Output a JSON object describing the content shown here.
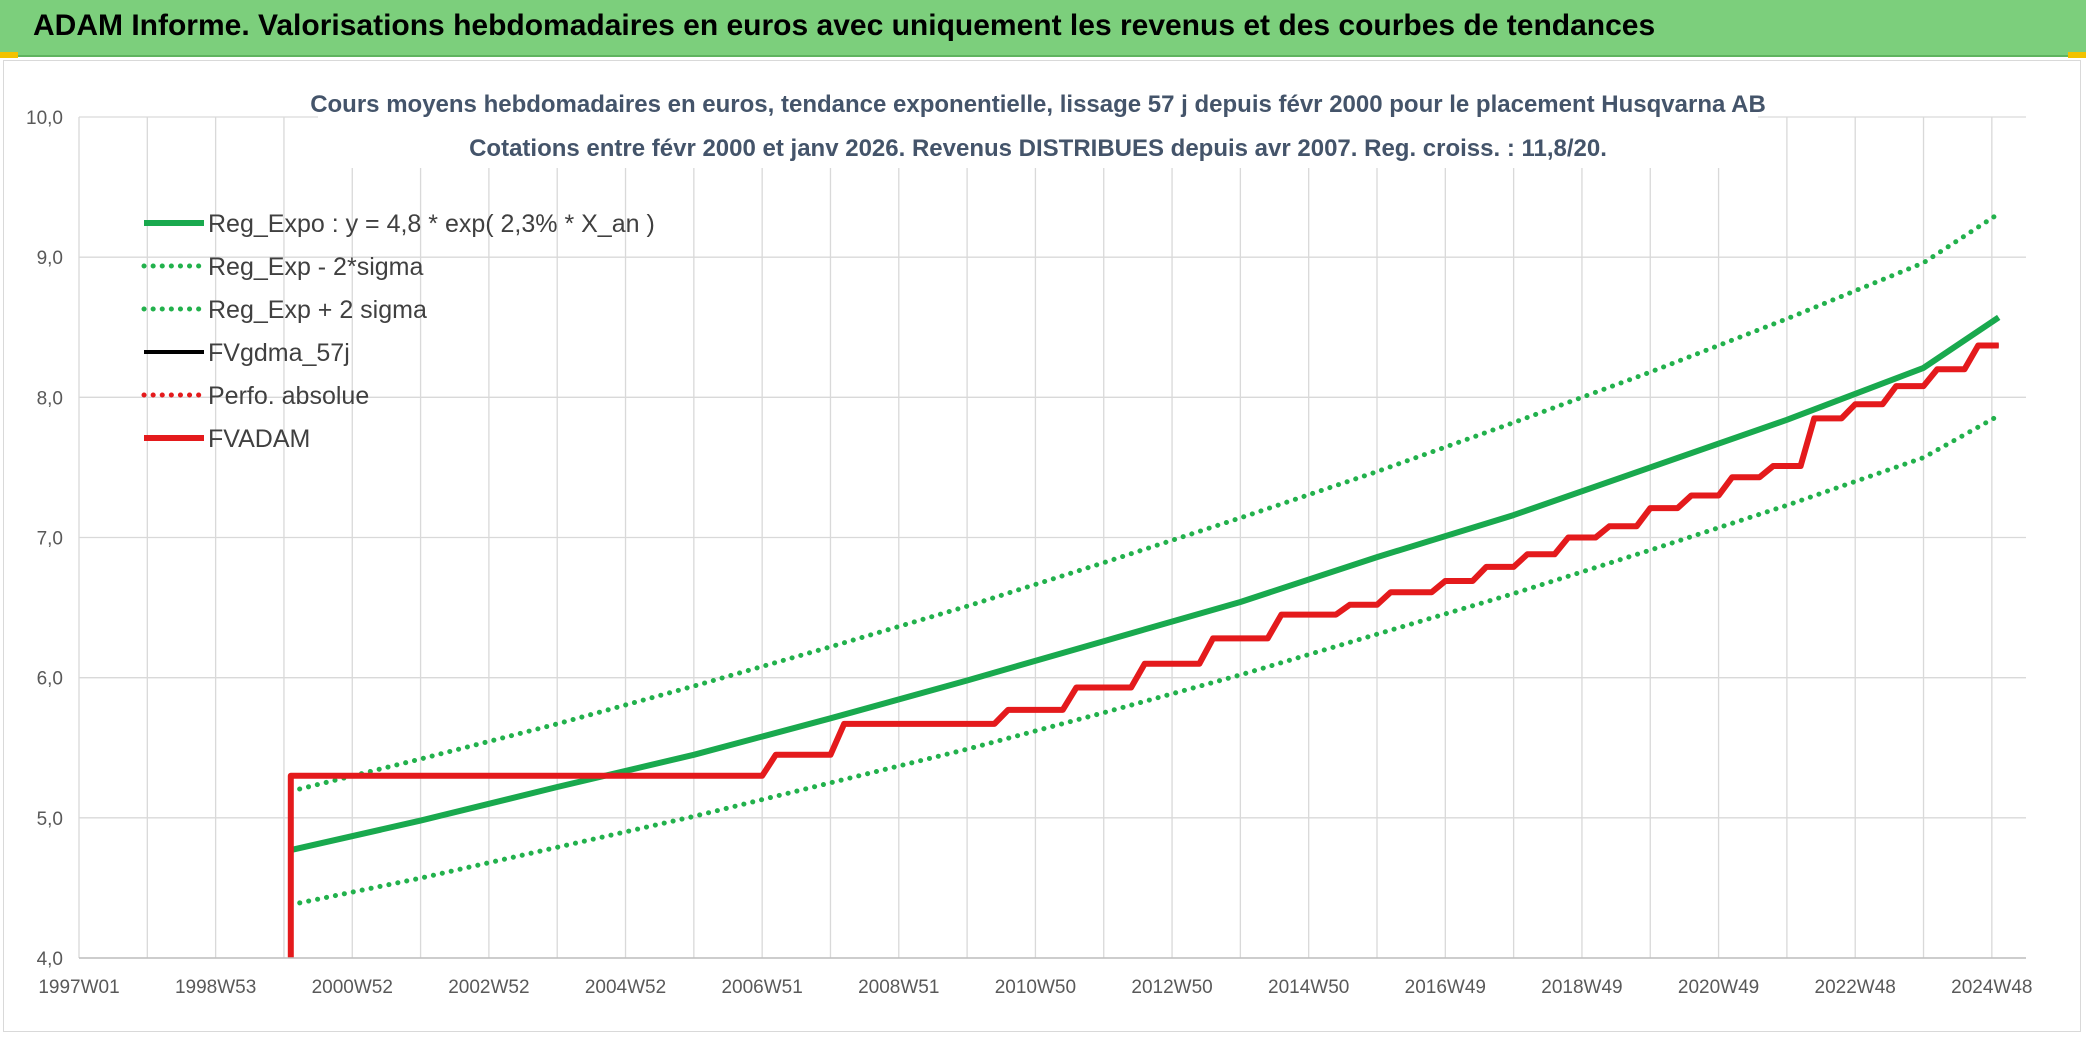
{
  "banner": {
    "title": "ADAM Informe. Valorisations hebdomadaires en euros avec uniquement les revenus et des courbes de tendances"
  },
  "colors": {
    "banner_bg": "#7ccf7c",
    "trend_green": "#19a94e",
    "band_green": "#22b14c",
    "fvgdma_black": "#000000",
    "fvadam_red": "#e41a1c",
    "perfo_red": "#e41a1c",
    "grid": "#d9d9d9",
    "title_text": "#44546a",
    "tick_text": "#595959"
  },
  "chart_data": {
    "type": "line",
    "title": "Cours moyens hebdomadaires en euros, tendance exponentielle, lissage 57 j depuis févr 2000 pour le placement Husqvarna AB",
    "subtitle": "Cotations entre févr 2000 et janv 2026. Revenus DISTRIBUES depuis avr 2007. Reg. croiss. : 11,8/20.",
    "xlabel": "",
    "ylabel": "",
    "ylim": [
      4.0,
      10.0
    ],
    "xlim": [
      1997.0,
      2025.5
    ],
    "y_ticks": [
      "4,0",
      "5,0",
      "6,0",
      "7,0",
      "8,0",
      "9,0",
      "10,0"
    ],
    "y_tick_values": [
      4.0,
      5.0,
      6.0,
      7.0,
      8.0,
      9.0,
      10.0
    ],
    "x_ticks": [
      "1997W01",
      "1998W53",
      "2000W52",
      "2002W52",
      "2004W52",
      "2006W51",
      "2008W51",
      "2010W50",
      "2012W50",
      "2014W50",
      "2016W49",
      "2018W49",
      "2020W49",
      "2022W48",
      "2024W48"
    ],
    "x_tick_values": [
      1997.0,
      1999.0,
      2001.0,
      2003.0,
      2005.0,
      2007.0,
      2009.0,
      2011.0,
      2013.0,
      2015.0,
      2017.0,
      2019.0,
      2021.0,
      2023.0,
      2025.0
    ],
    "grid": true,
    "legend_position": "top-left",
    "series": [
      {
        "name": "Reg_Expo : y = 4,8 * exp( 2,3% *  X_an )",
        "style": "solid-thick",
        "color": "#19a94e",
        "x": [
          2000.1,
          2002,
          2004,
          2006,
          2008,
          2010,
          2012,
          2014,
          2016,
          2018,
          2020,
          2022,
          2024,
          2025.1
        ],
        "y": [
          4.77,
          4.98,
          5.22,
          5.45,
          5.71,
          5.98,
          6.26,
          6.54,
          6.86,
          7.16,
          7.5,
          7.84,
          8.21,
          8.57
        ]
      },
      {
        "name": "Reg_Exp - 2*sigma",
        "style": "dotted",
        "color": "#22b14c",
        "x": [
          2000.1,
          2002,
          2004,
          2006,
          2008,
          2010,
          2012,
          2014,
          2016,
          2018,
          2020,
          2022,
          2024,
          2025.1
        ],
        "y": [
          4.38,
          4.57,
          4.79,
          5.01,
          5.25,
          5.49,
          5.75,
          6.02,
          6.31,
          6.6,
          6.91,
          7.23,
          7.57,
          7.87
        ]
      },
      {
        "name": "Reg_Exp + 2 sigma",
        "style": "dotted",
        "color": "#22b14c",
        "x": [
          2000.1,
          2002,
          2004,
          2006,
          2008,
          2010,
          2012,
          2014,
          2016,
          2018,
          2020,
          2022,
          2024,
          2025.1
        ],
        "y": [
          5.19,
          5.42,
          5.67,
          5.94,
          6.22,
          6.51,
          6.82,
          7.14,
          7.47,
          7.82,
          8.18,
          8.56,
          8.96,
          9.31
        ]
      },
      {
        "name": "FVgdma_57j",
        "style": "solid",
        "color": "#000000",
        "x": [
          2000.1,
          2007.0,
          2007.2,
          2008.0,
          2008.2,
          2010.4,
          2010.6,
          2011.4,
          2011.6,
          2012.4,
          2012.6,
          2013.4,
          2013.6,
          2014.4,
          2014.6,
          2015.4,
          2015.6,
          2016.0,
          2016.2,
          2016.8,
          2017.0,
          2017.4,
          2017.6,
          2018.0,
          2018.2,
          2018.6,
          2018.8,
          2019.2,
          2019.4,
          2019.8,
          2020.0,
          2020.4,
          2020.6,
          2021.0,
          2021.2,
          2021.6,
          2021.8,
          2022.2,
          2022.4,
          2022.8,
          2023.0,
          2023.4,
          2023.6,
          2024.0,
          2024.2,
          2024.6,
          2024.8,
          2025.1
        ],
        "y": [
          5.3,
          5.3,
          5.45,
          5.45,
          5.67,
          5.67,
          5.77,
          5.77,
          5.93,
          5.93,
          6.1,
          6.1,
          6.28,
          6.28,
          6.45,
          6.45,
          6.52,
          6.52,
          6.61,
          6.61,
          6.69,
          6.69,
          6.79,
          6.79,
          6.88,
          6.88,
          7.0,
          7.0,
          7.08,
          7.08,
          7.21,
          7.21,
          7.3,
          7.3,
          7.43,
          7.43,
          7.51,
          7.51,
          7.85,
          7.85,
          7.95,
          7.95,
          8.08,
          8.08,
          8.2,
          8.2,
          8.37,
          8.37
        ]
      },
      {
        "name": "Perfo. absolue",
        "style": "dotted",
        "color": "#e41a1c",
        "x": [
          2000.1,
          2007.0,
          2007.2,
          2008.0,
          2008.2,
          2010.4,
          2010.6,
          2011.4,
          2011.6,
          2012.4,
          2012.6,
          2013.4,
          2013.6,
          2014.4,
          2014.6,
          2015.4,
          2015.6,
          2016.0,
          2016.2,
          2016.8,
          2017.0,
          2017.4,
          2017.6,
          2018.0,
          2018.2,
          2018.6,
          2018.8,
          2019.2,
          2019.4,
          2019.8,
          2020.0,
          2020.4,
          2020.6,
          2021.0,
          2021.2,
          2021.6,
          2021.8,
          2022.2,
          2022.4,
          2022.8,
          2023.0,
          2023.4,
          2023.6,
          2024.0,
          2024.2,
          2024.6,
          2024.8,
          2025.1
        ],
        "y": [
          5.3,
          5.3,
          5.45,
          5.45,
          5.67,
          5.67,
          5.77,
          5.77,
          5.93,
          5.93,
          6.1,
          6.1,
          6.28,
          6.28,
          6.45,
          6.45,
          6.52,
          6.52,
          6.61,
          6.61,
          6.69,
          6.69,
          6.79,
          6.79,
          6.88,
          6.88,
          7.0,
          7.0,
          7.08,
          7.08,
          7.21,
          7.21,
          7.3,
          7.3,
          7.43,
          7.43,
          7.51,
          7.51,
          7.85,
          7.85,
          7.95,
          7.95,
          8.08,
          8.08,
          8.2,
          8.2,
          8.37,
          8.37
        ]
      },
      {
        "name": "FVADAM",
        "style": "solid-thick",
        "color": "#e41a1c",
        "x": [
          2000.1,
          2000.1,
          2007.0,
          2007.2,
          2008.0,
          2008.2,
          2010.4,
          2010.6,
          2011.4,
          2011.6,
          2012.4,
          2012.6,
          2013.4,
          2013.6,
          2014.4,
          2014.6,
          2015.4,
          2015.6,
          2016.0,
          2016.2,
          2016.8,
          2017.0,
          2017.4,
          2017.6,
          2018.0,
          2018.2,
          2018.6,
          2018.8,
          2019.2,
          2019.4,
          2019.8,
          2020.0,
          2020.4,
          2020.6,
          2021.0,
          2021.2,
          2021.6,
          2021.8,
          2022.2,
          2022.4,
          2022.8,
          2023.0,
          2023.4,
          2023.6,
          2024.0,
          2024.2,
          2024.6,
          2024.8,
          2025.1
        ],
        "y": [
          4.0,
          5.3,
          5.3,
          5.45,
          5.45,
          5.67,
          5.67,
          5.77,
          5.77,
          5.93,
          5.93,
          6.1,
          6.1,
          6.28,
          6.28,
          6.45,
          6.45,
          6.52,
          6.52,
          6.61,
          6.61,
          6.69,
          6.69,
          6.79,
          6.79,
          6.88,
          6.88,
          7.0,
          7.0,
          7.08,
          7.08,
          7.21,
          7.21,
          7.3,
          7.3,
          7.43,
          7.43,
          7.51,
          7.51,
          7.85,
          7.85,
          7.95,
          7.95,
          8.08,
          8.08,
          8.2,
          8.2,
          8.37,
          8.37
        ]
      }
    ]
  }
}
